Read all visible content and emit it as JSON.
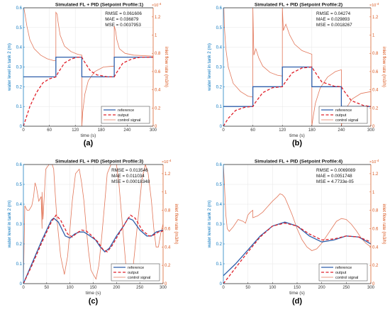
{
  "figure": {
    "style": {
      "left_axis_color": "#0072BD",
      "right_axis_color": "#D95319",
      "reference_color": "#2E5EAA",
      "output_color": "#E0202A",
      "control_color": "#E2775A",
      "grid_color": "#E6E6E6"
    },
    "legend_labels": [
      "reference",
      "output",
      "control signal"
    ],
    "right_exponent": "×10",
    "right_exponent_power": "-4"
  },
  "chart_data": [
    {
      "type": "line",
      "panel_label": "(a)",
      "title": "Simulated FL + PID (Setpoint Profile:1)",
      "xlabel": "time (s)",
      "ylabel": "water level in tank 2 (m)",
      "ylabel_right": "inlet flow rate (m3/h)",
      "xlim": [
        0,
        300
      ],
      "ylim": [
        0,
        0.6
      ],
      "ylim_right": [
        0,
        1.3
      ],
      "x_ticks": [
        "0",
        "60",
        "120",
        "180",
        "240",
        "300"
      ],
      "y_ticks": [
        "0",
        "0.1",
        "0.2",
        "0.3",
        "0.4",
        "0.5",
        "0.6"
      ],
      "y_right_ticks": [
        "0",
        "0.2",
        "0.4",
        "0.6",
        "0.8",
        "1",
        "1.2"
      ],
      "metrics": [
        "RMSE = 0.061606",
        "MAE = 0.036879",
        "MSE = 0.0037953"
      ],
      "legend_position": "bottom-right",
      "grid": true,
      "series": [
        {
          "name": "reference",
          "axis": "left",
          "x": [
            0,
            75,
            75,
            135,
            135,
            210,
            210,
            300
          ],
          "y": [
            0.25,
            0.25,
            0.35,
            0.35,
            0.25,
            0.25,
            0.35,
            0.35
          ]
        },
        {
          "name": "output",
          "axis": "left",
          "x": [
            0,
            15,
            30,
            45,
            60,
            75,
            80,
            95,
            110,
            125,
            135,
            140,
            155,
            170,
            195,
            210,
            215,
            230,
            250,
            270,
            300
          ],
          "y": [
            0.0,
            0.1,
            0.17,
            0.22,
            0.24,
            0.25,
            0.27,
            0.32,
            0.34,
            0.35,
            0.35,
            0.33,
            0.28,
            0.26,
            0.25,
            0.25,
            0.27,
            0.32,
            0.34,
            0.35,
            0.35
          ]
        },
        {
          "name": "control signal",
          "axis": "right",
          "x": [
            0,
            1,
            3,
            8,
            15,
            25,
            40,
            55,
            70,
            75,
            75,
            78,
            80,
            85,
            95,
            110,
            125,
            135,
            135,
            137,
            142,
            150,
            165,
            185,
            210,
            210,
            213,
            216,
            222,
            235,
            255,
            300
          ],
          "y": [
            1.3,
            1.3,
            1.25,
            1.1,
            0.95,
            0.85,
            0.78,
            0.74,
            0.72,
            0.72,
            1.25,
            1.23,
            1.15,
            1.0,
            0.88,
            0.82,
            0.79,
            0.78,
            0.0,
            0.15,
            0.35,
            0.5,
            0.6,
            0.65,
            0.66,
            1.1,
            1.05,
            0.95,
            0.85,
            0.8,
            0.78,
            0.77
          ]
        }
      ]
    },
    {
      "type": "line",
      "panel_label": "(b)",
      "title": "Simulated FL + PID (Setpoint Profile:2)",
      "xlabel": "time (s)",
      "ylabel": "water level in tank 2 (m)",
      "ylabel_right": "inlet flow rate (m3/h)",
      "xlim": [
        0,
        300
      ],
      "ylim": [
        0,
        0.6
      ],
      "ylim_right": [
        0,
        1.3
      ],
      "x_ticks": [
        "0",
        "60",
        "120",
        "180",
        "240",
        "300"
      ],
      "y_ticks": [
        "0",
        "0.1",
        "0.2",
        "0.3",
        "0.4",
        "0.5",
        "0.6"
      ],
      "y_right_ticks": [
        "0",
        "0.2",
        "0.4",
        "0.6",
        "0.8",
        "1",
        "1.2"
      ],
      "metrics": [
        "RMSE = 0.04274",
        "MAE = 0.029893",
        "MSE = 0.0018267"
      ],
      "legend_position": "bottom-right",
      "grid": true,
      "series": [
        {
          "name": "reference",
          "axis": "left",
          "x": [
            0,
            60,
            60,
            120,
            120,
            180,
            180,
            240,
            240,
            300
          ],
          "y": [
            0.1,
            0.1,
            0.2,
            0.2,
            0.3,
            0.3,
            0.2,
            0.2,
            0.1,
            0.1
          ]
        },
        {
          "name": "output",
          "axis": "left",
          "x": [
            0,
            10,
            25,
            45,
            60,
            65,
            80,
            100,
            120,
            125,
            140,
            160,
            180,
            185,
            200,
            225,
            240,
            245,
            260,
            285,
            300
          ],
          "y": [
            0.0,
            0.04,
            0.08,
            0.097,
            0.1,
            0.12,
            0.17,
            0.195,
            0.2,
            0.22,
            0.27,
            0.295,
            0.3,
            0.28,
            0.225,
            0.203,
            0.2,
            0.18,
            0.13,
            0.105,
            0.1
          ]
        },
        {
          "name": "control signal",
          "axis": "right",
          "x": [
            0,
            1,
            2,
            5,
            10,
            20,
            35,
            50,
            60,
            60,
            62,
            66,
            72,
            80,
            95,
            110,
            120,
            120,
            122,
            127,
            135,
            145,
            160,
            175,
            180,
            180,
            182,
            187,
            197,
            212,
            228,
            240,
            240,
            243,
            250,
            262,
            280,
            300
          ],
          "y": [
            1.3,
            1.3,
            1.1,
            0.85,
            0.65,
            0.47,
            0.38,
            0.33,
            0.32,
            1.3,
            0.78,
            0.85,
            0.75,
            0.66,
            0.59,
            0.56,
            0.55,
            1.3,
            1.05,
            1.12,
            1.0,
            0.9,
            0.83,
            0.8,
            0.79,
            0.0,
            0.08,
            0.25,
            0.42,
            0.54,
            0.6,
            0.62,
            0.0,
            0.1,
            0.2,
            0.3,
            0.36,
            0.38
          ]
        }
      ]
    },
    {
      "type": "line",
      "panel_label": "(c)",
      "title": "Simulated FL + PID (Setpoint Profile:3)",
      "xlabel": "time (s)",
      "ylabel": "water level in tank 2 (m)",
      "ylabel_right": "inlet flow rate (m3/h)",
      "xlim": [
        0,
        300
      ],
      "ylim": [
        0,
        0.6
      ],
      "ylim_right": [
        0,
        1.3
      ],
      "x_ticks": [
        "0",
        "50",
        "100",
        "150",
        "200",
        "250",
        "300"
      ],
      "y_ticks": [
        "0",
        "0.1",
        "0.2",
        "0.3",
        "0.4",
        "0.5",
        "0.6"
      ],
      "y_right_ticks": [
        "0",
        "0.2",
        "0.4",
        "0.6",
        "0.8",
        "1",
        "1.2"
      ],
      "metrics": [
        "RMSE = 0.013546",
        "MAE = 0.011034",
        "MSE = 0.00018348"
      ],
      "legend_position": "bottom-right",
      "grid": true,
      "series": [
        {
          "name": "reference",
          "axis": "left",
          "x": [
            0,
            20,
            40,
            60,
            65,
            75,
            90,
            100,
            110,
            120,
            130,
            140,
            155,
            165,
            175,
            185,
            200,
            215,
            225,
            235,
            250,
            265,
            275,
            285,
            300
          ],
          "y": [
            0.0,
            0.11,
            0.22,
            0.32,
            0.33,
            0.31,
            0.24,
            0.23,
            0.25,
            0.26,
            0.26,
            0.245,
            0.22,
            0.185,
            0.16,
            0.18,
            0.24,
            0.29,
            0.33,
            0.32,
            0.27,
            0.24,
            0.24,
            0.26,
            0.27
          ]
        },
        {
          "name": "output",
          "axis": "left",
          "x": [
            0,
            20,
            40,
            60,
            70,
            80,
            95,
            105,
            115,
            125,
            135,
            145,
            160,
            170,
            180,
            190,
            205,
            220,
            230,
            240,
            255,
            270,
            280,
            290,
            300
          ],
          "y": [
            0.0,
            0.1,
            0.21,
            0.31,
            0.345,
            0.32,
            0.25,
            0.235,
            0.255,
            0.27,
            0.265,
            0.245,
            0.21,
            0.175,
            0.16,
            0.19,
            0.25,
            0.31,
            0.345,
            0.33,
            0.27,
            0.24,
            0.245,
            0.26,
            0.265
          ]
        },
        {
          "name": "control signal",
          "axis": "right",
          "x": [
            0,
            3,
            8,
            12,
            18,
            22,
            25,
            28,
            33,
            38,
            40,
            40,
            42,
            48,
            55,
            62,
            65,
            68,
            72,
            80,
            88,
            95,
            100,
            105,
            112,
            120,
            125,
            130,
            135,
            140,
            145,
            150,
            156,
            162,
            168,
            175,
            180,
            188,
            195,
            200,
            205,
            210,
            215,
            220,
            225,
            230,
            235,
            240,
            248,
            255,
            262,
            268,
            275,
            280,
            285,
            290,
            295,
            300
          ],
          "y": [
            0.0,
            0.85,
            0.8,
            0.8,
            0.85,
            0.95,
            1.1,
            1.05,
            0.9,
            0.95,
            0.6,
            1.0,
            0.7,
            1.25,
            1.3,
            1.3,
            1.25,
            1.0,
            0.7,
            0.3,
            0.1,
            0.3,
            0.6,
            0.9,
            1.2,
            1.25,
            1.1,
            0.9,
            0.6,
            0.35,
            0.15,
            0.1,
            0.05,
            0.2,
            0.5,
            0.9,
            1.2,
            1.3,
            1.3,
            1.3,
            1.1,
            0.8,
            0.5,
            0.2,
            0.05,
            0.05,
            0.15,
            0.4,
            0.8,
            1.15,
            1.3,
            1.2,
            0.9,
            0.6,
            0.4,
            0.4,
            0.55,
            0.65
          ]
        }
      ]
    },
    {
      "type": "line",
      "panel_label": "(d)",
      "title": "Simulated FL + PID (Setpoint Profile:4)",
      "xlabel": "time (s)",
      "ylabel": "water level in tank 2 (m)",
      "ylabel_right": "inlet flow rate (m3/h)",
      "xlim": [
        0,
        300
      ],
      "ylim": [
        0,
        0.6
      ],
      "ylim_right": [
        0,
        1.3
      ],
      "x_ticks": [
        "0",
        "50",
        "100",
        "150",
        "200",
        "250",
        "300"
      ],
      "y_ticks": [
        "0",
        "0.1",
        "0.2",
        "0.3",
        "0.4",
        "0.5",
        "0.6"
      ],
      "y_right_ticks": [
        "0",
        "0.2",
        "0.4",
        "0.6",
        "0.8",
        "1",
        "1.2"
      ],
      "metrics": [
        "RMSE = 0.0069089",
        "MAE = 0.0051748",
        "MSE = 4.7733e-05"
      ],
      "legend_position": "bottom-right",
      "grid": true,
      "series": [
        {
          "name": "reference",
          "axis": "left",
          "x": [
            0,
            25,
            50,
            75,
            100,
            125,
            150,
            175,
            200,
            225,
            250,
            275,
            300
          ],
          "y": [
            0.04,
            0.1,
            0.17,
            0.24,
            0.29,
            0.31,
            0.29,
            0.24,
            0.21,
            0.22,
            0.24,
            0.235,
            0.2
          ]
        },
        {
          "name": "output",
          "axis": "left",
          "x": [
            0,
            25,
            50,
            75,
            100,
            125,
            150,
            175,
            200,
            225,
            250,
            275,
            300
          ],
          "y": [
            0.0,
            0.08,
            0.16,
            0.235,
            0.29,
            0.305,
            0.29,
            0.25,
            0.22,
            0.225,
            0.24,
            0.235,
            0.21
          ]
        },
        {
          "name": "control signal",
          "axis": "right",
          "x": [
            0,
            2,
            5,
            8,
            12,
            20,
            30,
            40,
            45,
            50,
            55,
            60,
            60,
            70,
            80,
            90,
            100,
            110,
            115,
            120,
            125,
            130,
            140,
            150,
            160,
            170,
            180,
            190,
            200,
            210,
            220,
            230,
            240,
            250,
            260,
            270,
            280,
            290,
            300
          ],
          "y": [
            1.3,
            1.1,
            0.75,
            0.6,
            0.57,
            0.62,
            0.7,
            0.68,
            0.66,
            0.75,
            0.78,
            0.8,
            0.72,
            0.74,
            0.78,
            0.84,
            0.9,
            0.95,
            0.98,
            0.97,
            0.94,
            0.88,
            0.75,
            0.6,
            0.48,
            0.4,
            0.36,
            0.38,
            0.44,
            0.52,
            0.6,
            0.68,
            0.71,
            0.7,
            0.65,
            0.58,
            0.5,
            0.44,
            0.4
          ]
        }
      ]
    }
  ]
}
